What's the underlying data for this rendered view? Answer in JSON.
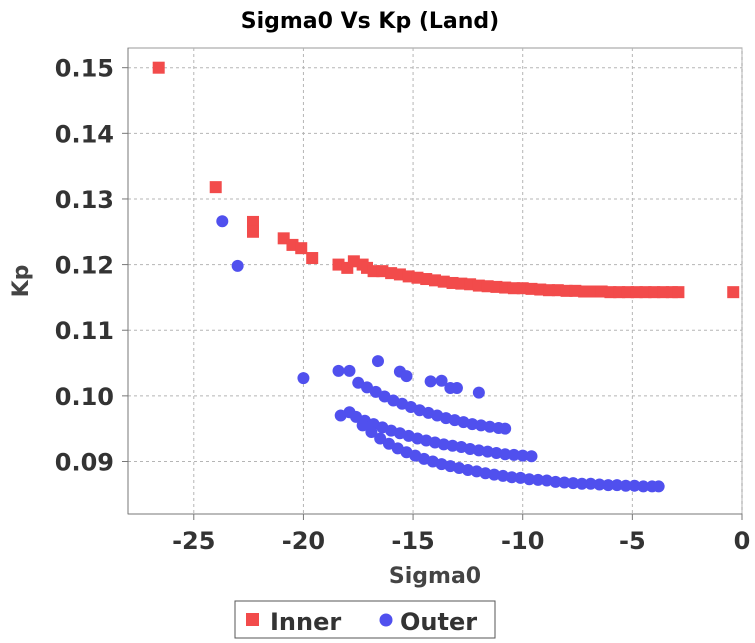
{
  "chart_data": {
    "type": "scatter",
    "title": "Sigma0 Vs Kp (Land)",
    "xlabel": "Sigma0",
    "ylabel": "Kp",
    "xlim": [
      -28,
      0
    ],
    "ylim": [
      0.082,
      0.153
    ],
    "x_ticks": [
      "-25",
      "-20",
      "-15",
      "-10",
      "-5",
      "0"
    ],
    "y_ticks": [
      "0.15",
      "0.14",
      "0.13",
      "0.12",
      "0.11",
      "0.10",
      "0.09"
    ],
    "grid": true,
    "legend_position": "bottom",
    "colors": {
      "Inner": "#f24b4b",
      "Outer": "#5050ee"
    },
    "series": [
      {
        "name": "Inner",
        "marker": "square",
        "points": [
          [
            -26.6,
            0.15
          ],
          [
            -24.0,
            0.1318
          ],
          [
            -22.3,
            0.1265
          ],
          [
            -22.3,
            0.125
          ],
          [
            -20.9,
            0.124
          ],
          [
            -20.5,
            0.123
          ],
          [
            -20.1,
            0.1225
          ],
          [
            -19.6,
            0.121
          ],
          [
            -18.4,
            0.12
          ],
          [
            -18.0,
            0.1195
          ],
          [
            -17.7,
            0.1205
          ],
          [
            -17.3,
            0.12
          ],
          [
            -17.1,
            0.1195
          ],
          [
            -16.8,
            0.119
          ],
          [
            -16.4,
            0.119
          ],
          [
            -16.0,
            0.1187
          ],
          [
            -15.6,
            0.1185
          ],
          [
            -15.2,
            0.1182
          ],
          [
            -14.8,
            0.118
          ],
          [
            -14.4,
            0.1178
          ],
          [
            -14.0,
            0.1176
          ],
          [
            -13.6,
            0.1174
          ],
          [
            -13.2,
            0.1172
          ],
          [
            -12.8,
            0.1171
          ],
          [
            -12.4,
            0.117
          ],
          [
            -12.0,
            0.1168
          ],
          [
            -11.6,
            0.1167
          ],
          [
            -11.2,
            0.1166
          ],
          [
            -10.8,
            0.1165
          ],
          [
            -10.4,
            0.1164
          ],
          [
            -10.0,
            0.1164
          ],
          [
            -9.6,
            0.1163
          ],
          [
            -9.2,
            0.1162
          ],
          [
            -8.8,
            0.1161
          ],
          [
            -8.4,
            0.1161
          ],
          [
            -8.0,
            0.116
          ],
          [
            -7.6,
            0.116
          ],
          [
            -7.2,
            0.1159
          ],
          [
            -6.8,
            0.1159
          ],
          [
            -6.4,
            0.1159
          ],
          [
            -6.0,
            0.1158
          ],
          [
            -5.6,
            0.1158
          ],
          [
            -5.2,
            0.1158
          ],
          [
            -4.8,
            0.1158
          ],
          [
            -4.4,
            0.1158
          ],
          [
            -4.0,
            0.1158
          ],
          [
            -3.6,
            0.1158
          ],
          [
            -3.2,
            0.1158
          ],
          [
            -2.9,
            0.1158
          ],
          [
            -0.4,
            0.1158
          ]
        ]
      },
      {
        "name": "Outer",
        "marker": "circle",
        "points": [
          [
            -23.7,
            0.1266
          ],
          [
            -23.0,
            0.1198
          ],
          [
            -20.0,
            0.1027
          ],
          [
            -18.4,
            0.1038
          ],
          [
            -17.9,
            0.1038
          ],
          [
            -16.6,
            0.1053
          ],
          [
            -15.6,
            0.1037
          ],
          [
            -15.3,
            0.103
          ],
          [
            -14.2,
            0.1022
          ],
          [
            -13.7,
            0.1023
          ],
          [
            -13.3,
            0.1012
          ],
          [
            -13.0,
            0.1012
          ],
          [
            -12.0,
            0.1005
          ],
          [
            -17.5,
            0.102
          ],
          [
            -17.1,
            0.1013
          ],
          [
            -16.7,
            0.1006
          ],
          [
            -16.3,
            0.0999
          ],
          [
            -15.9,
            0.0993
          ],
          [
            -15.5,
            0.0988
          ],
          [
            -15.1,
            0.0983
          ],
          [
            -14.7,
            0.0978
          ],
          [
            -14.3,
            0.0974
          ],
          [
            -13.9,
            0.097
          ],
          [
            -13.5,
            0.0966
          ],
          [
            -13.1,
            0.0963
          ],
          [
            -12.7,
            0.096
          ],
          [
            -12.3,
            0.0957
          ],
          [
            -11.9,
            0.0955
          ],
          [
            -11.5,
            0.0953
          ],
          [
            -11.1,
            0.0951
          ],
          [
            -10.8,
            0.095
          ],
          [
            -18.3,
            0.097
          ],
          [
            -17.9,
            0.0975
          ],
          [
            -17.6,
            0.0968
          ],
          [
            -17.2,
            0.0962
          ],
          [
            -16.8,
            0.0957
          ],
          [
            -16.4,
            0.0952
          ],
          [
            -16.0,
            0.0947
          ],
          [
            -15.6,
            0.0943
          ],
          [
            -15.2,
            0.0939
          ],
          [
            -14.8,
            0.0935
          ],
          [
            -14.4,
            0.0932
          ],
          [
            -14.0,
            0.0929
          ],
          [
            -13.6,
            0.0926
          ],
          [
            -13.2,
            0.0924
          ],
          [
            -12.8,
            0.0922
          ],
          [
            -12.4,
            0.0919
          ],
          [
            -12.0,
            0.0917
          ],
          [
            -11.6,
            0.0915
          ],
          [
            -11.2,
            0.0913
          ],
          [
            -10.8,
            0.0911
          ],
          [
            -10.4,
            0.091
          ],
          [
            -10.0,
            0.0909
          ],
          [
            -9.6,
            0.0908
          ],
          [
            -17.3,
            0.0955
          ],
          [
            -16.9,
            0.0945
          ],
          [
            -16.5,
            0.0935
          ],
          [
            -16.1,
            0.0927
          ],
          [
            -15.7,
            0.092
          ],
          [
            -15.3,
            0.0914
          ],
          [
            -14.9,
            0.0909
          ],
          [
            -14.5,
            0.0904
          ],
          [
            -14.1,
            0.09
          ],
          [
            -13.7,
            0.0896
          ],
          [
            -13.3,
            0.0893
          ],
          [
            -12.9,
            0.089
          ],
          [
            -12.5,
            0.0887
          ],
          [
            -12.1,
            0.0885
          ],
          [
            -11.7,
            0.0882
          ],
          [
            -11.3,
            0.088
          ],
          [
            -10.9,
            0.0878
          ],
          [
            -10.5,
            0.0876
          ],
          [
            -10.1,
            0.0875
          ],
          [
            -9.7,
            0.0873
          ],
          [
            -9.3,
            0.0872
          ],
          [
            -8.9,
            0.0871
          ],
          [
            -8.5,
            0.0869
          ],
          [
            -8.1,
            0.0868
          ],
          [
            -7.7,
            0.0867
          ],
          [
            -7.3,
            0.0866
          ],
          [
            -6.9,
            0.0866
          ],
          [
            -6.5,
            0.0865
          ],
          [
            -6.1,
            0.0864
          ],
          [
            -5.7,
            0.0864
          ],
          [
            -5.3,
            0.0863
          ],
          [
            -4.9,
            0.0863
          ],
          [
            -4.5,
            0.0862
          ],
          [
            -4.1,
            0.0862
          ],
          [
            -3.8,
            0.0862
          ]
        ]
      }
    ]
  }
}
